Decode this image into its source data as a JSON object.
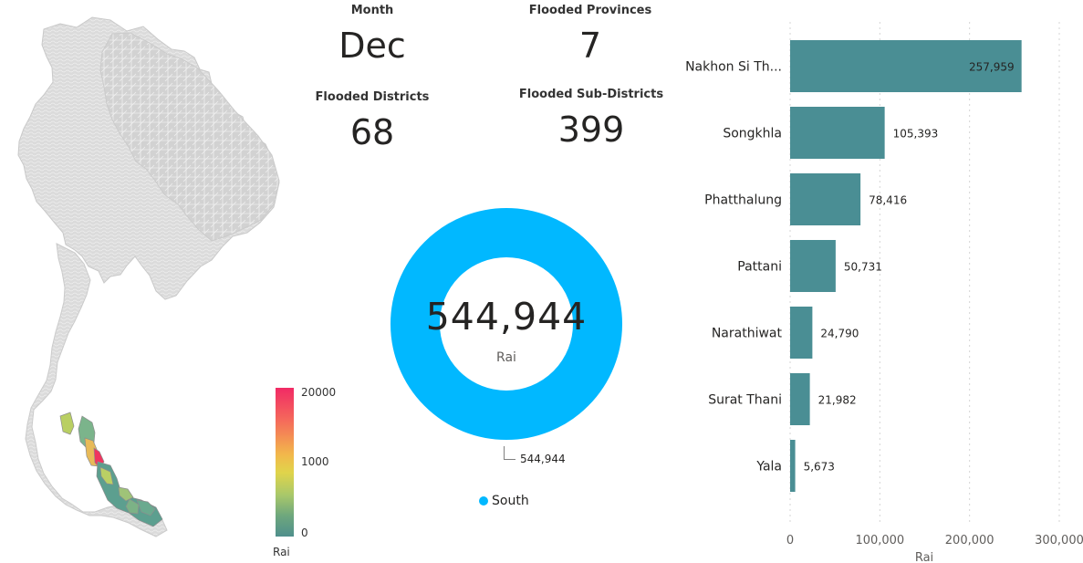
{
  "map": {
    "legend": {
      "top_label": "20000",
      "mid_label": "1000",
      "bottom_label": "0",
      "title": "Rai"
    },
    "colors": {
      "base": "#d6d6d6",
      "low": "#5c9f8f",
      "mid": "#e8c95a",
      "high": "#ef355f"
    }
  },
  "cards": {
    "month": {
      "label": "Month",
      "value": "Dec"
    },
    "provinces": {
      "label": "Flooded Provinces",
      "value": "7"
    },
    "districts": {
      "label": "Flooded Districts",
      "value": "68"
    },
    "subdistricts": {
      "label": "Flooded Sub-Districts",
      "value": "399"
    }
  },
  "donut": {
    "center_value": "544,944",
    "center_label": "Rai",
    "callout_value": "544,944",
    "legend_label": "South",
    "color": "#01b8ff"
  },
  "chart_data": [
    {
      "type": "pie",
      "values": [
        544944
      ],
      "categories": [
        "South"
      ],
      "title": "",
      "unit": "Rai",
      "center_value": "544,944",
      "legend_placement": "bottom",
      "colors": [
        "#01b8ff"
      ]
    },
    {
      "type": "bar",
      "orientation": "horizontal",
      "categories": [
        "Nakhon Si Th...",
        "Songkhla",
        "Phatthalung",
        "Pattani",
        "Narathiwat",
        "Surat Thani",
        "Yala"
      ],
      "values": [
        257959,
        105393,
        78416,
        50731,
        24790,
        21982,
        5673
      ],
      "value_labels": [
        "257,959",
        "105,393",
        "78,416",
        "50,731",
        "24,790",
        "21,982",
        "5,673"
      ],
      "title": "",
      "xlabel": "Rai",
      "ylabel": "",
      "xlim": [
        0,
        300000
      ],
      "xticks": [
        "0",
        "100,000",
        "200,000",
        "300,000"
      ],
      "grid": true,
      "bar_color": "#4a8e94",
      "label_color": "#252423"
    }
  ]
}
